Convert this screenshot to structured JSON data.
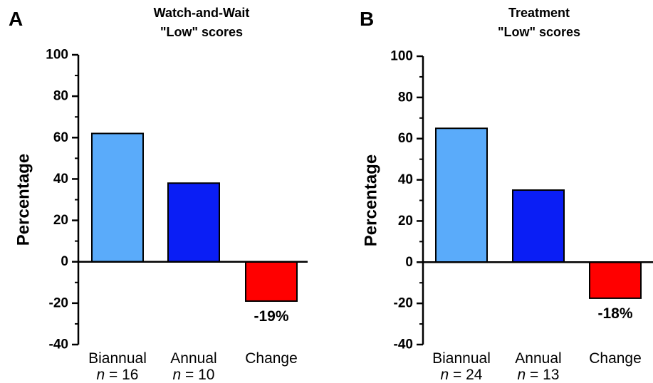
{
  "chart_data": [
    {
      "type": "bar",
      "panel_letter": "A",
      "title": [
        "Watch-and-Wait",
        "\"Low\" scores"
      ],
      "ylabel": "Percentage",
      "ylim": [
        -40,
        100
      ],
      "yticks": [
        100,
        80,
        60,
        40,
        20,
        0,
        -20,
        -40
      ],
      "categories": [
        "Biannual",
        "Annual",
        "Change"
      ],
      "n_values": [
        "16",
        "10",
        ""
      ],
      "values": [
        62,
        38,
        -19
      ],
      "colors": [
        "#5aabfa",
        "#0a1ef5",
        "#ff0000"
      ],
      "data_labels": [
        "",
        "",
        "-19%"
      ],
      "grid": false,
      "legend": "none"
    },
    {
      "type": "bar",
      "panel_letter": "B",
      "title": [
        "Treatment",
        "\"Low\" scores"
      ],
      "ylabel": "Percentage",
      "ylim": [
        -40,
        100
      ],
      "yticks": [
        100,
        80,
        60,
        40,
        20,
        0,
        -20,
        -40
      ],
      "categories": [
        "Biannual",
        "Annual",
        "Change"
      ],
      "n_values": [
        "24",
        "13",
        ""
      ],
      "values": [
        65,
        35,
        -17.5
      ],
      "colors": [
        "#5aabfa",
        "#0a1ef5",
        "#ff0000"
      ],
      "data_labels": [
        "",
        "",
        "-18%"
      ],
      "grid": false,
      "legend": "none"
    }
  ]
}
